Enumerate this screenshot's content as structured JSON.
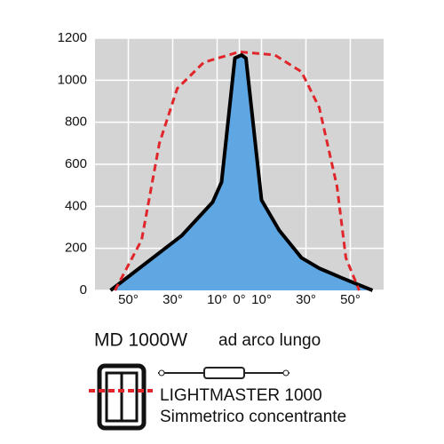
{
  "chart_data": {
    "type": "line",
    "xlim": [
      -65,
      65
    ],
    "ylim": [
      0,
      1200
    ],
    "yticks": [
      0,
      200,
      400,
      600,
      800,
      1000,
      1200
    ],
    "xticks": [
      {
        "value": -50,
        "label": "50°"
      },
      {
        "value": -30,
        "label": "30°"
      },
      {
        "value": -10,
        "label": "10°"
      },
      {
        "value": 0,
        "label": "0°"
      },
      {
        "value": 10,
        "label": "10°"
      },
      {
        "value": 30,
        "label": "30°"
      },
      {
        "value": 50,
        "label": "50°"
      }
    ],
    "grid": true,
    "series": [
      {
        "color": "#000000",
        "fill": "#5ea7e3",
        "dashed": false,
        "x": [
          -58,
          -26,
          -12,
          -8,
          -2,
          1,
          3,
          10,
          18,
          28,
          36,
          46,
          60
        ],
        "values": [
          0,
          260,
          420,
          515,
          1105,
          1120,
          1105,
          430,
          285,
          155,
          105,
          60,
          0
        ]
      },
      {
        "color": "#e0262b",
        "dashed": true,
        "x": [
          -56,
          -44,
          -36,
          -28,
          -16,
          0,
          16,
          28,
          36,
          44,
          48,
          54
        ],
        "values": [
          0,
          240,
          700,
          960,
          1085,
          1135,
          1120,
          1040,
          870,
          495,
          155,
          0
        ]
      }
    ],
    "model": "MD 1000W",
    "lamp": "ad arco lungo",
    "product": "LIGHTMASTER 1000",
    "description": "Simmetrico concentrante"
  }
}
